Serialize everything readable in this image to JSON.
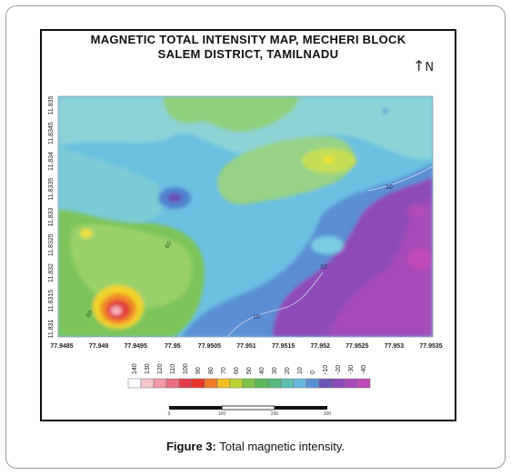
{
  "title_line1": "MAGNETIC TOTAL INTENSITY MAP, MECHERI BLOCK",
  "title_line2": "SALEM DISTRICT, TAMILNADU",
  "north_label": "N",
  "y_ticks": [
    "11.835",
    "11.8345",
    "11.834",
    "11.8335",
    "11.833",
    "11.8325",
    "11.832",
    "11.8315",
    "11.831"
  ],
  "x_ticks": [
    "77.9485",
    "77.949",
    "77.9495",
    "77.95",
    "77.9505",
    "77.951",
    "77.9515",
    "77.952",
    "77.9525",
    "77.953",
    "77.9535"
  ],
  "contour_labels": [
    "10",
    "10",
    "10",
    "60",
    "60"
  ],
  "legend_values": [
    "140",
    "130",
    "120",
    "110",
    "100",
    "90",
    "80",
    "70",
    "60",
    "50",
    "40",
    "30",
    "20",
    "10",
    "0",
    "-10",
    "-20",
    "-30",
    "-40"
  ],
  "legend_colors": [
    "#ffffff",
    "#f7c6cc",
    "#f29aa5",
    "#ec6f7f",
    "#e43b4b",
    "#e8382b",
    "#f07a25",
    "#f3c11f",
    "#bfd535",
    "#7fc24a",
    "#5cb85a",
    "#57b97e",
    "#5cbfb4",
    "#69b8df",
    "#5a8fd3",
    "#6a55b6",
    "#8a4ab7",
    "#a74bb8",
    "#c04ab5"
  ],
  "scale_ticks": [
    "0",
    "100",
    "200",
    "300"
  ],
  "caption_label": "Figure 3:",
  "caption_text": " Total magnetic intensity."
}
